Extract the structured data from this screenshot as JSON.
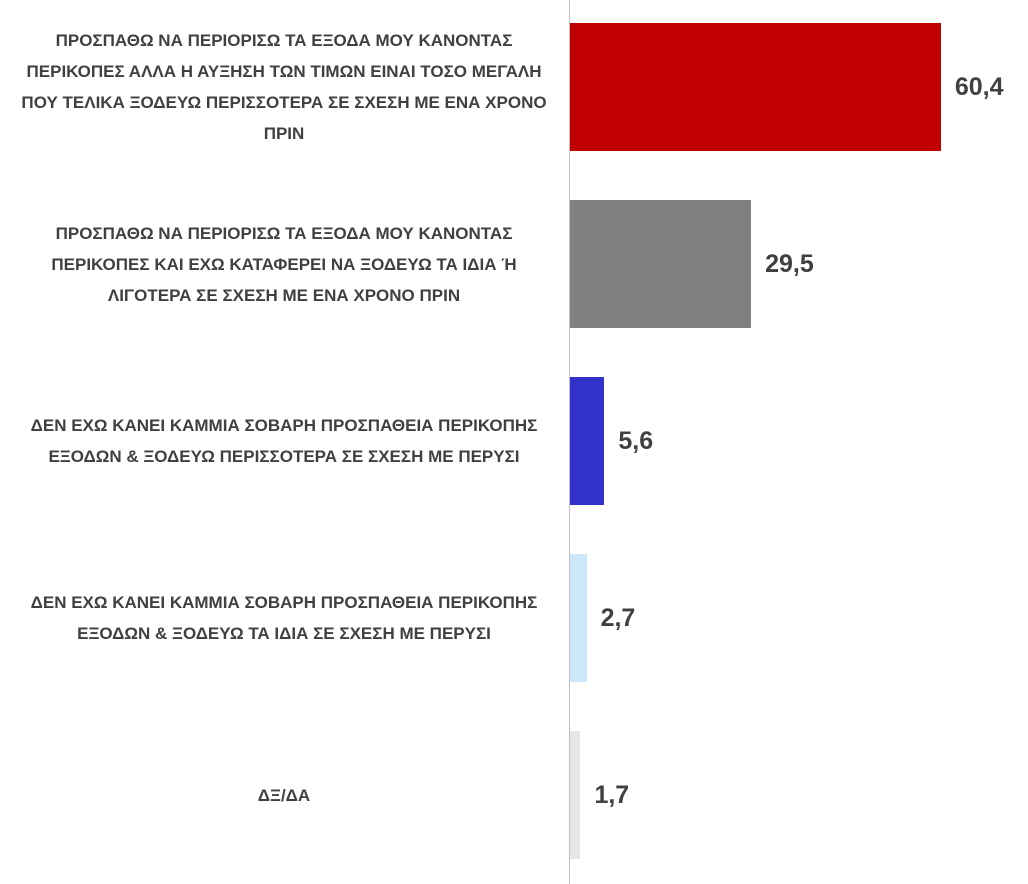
{
  "chart_data": {
    "type": "barh",
    "categories": [
      "ΠΡΟΣΠΑΘΩ ΝΑ ΠΕΡΙΟΡΙΣΩ ΤΑ ΕΞΟΔΑ ΜΟΥ ΚΑΝΟΝΤΑΣ ΠΕΡΙΚΟΠΕΣ ΑΛΛΑ Η ΑΥΞΗΣΗ ΤΩΝ ΤΙΜΩΝ ΕΙΝΑΙ ΤΟΣΟ ΜΕΓΑΛΗ ΠΟΥ ΤΕΛΙΚΑ ΞΟΔΕΥΩ ΠΕΡΙΣΣΟΤΕΡΑ ΣΕ ΣΧΕΣΗ ΜΕ ΕΝΑ ΧΡΟΝΟ ΠΡΙΝ",
      "ΠΡΟΣΠΑΘΩ ΝΑ ΠΕΡΙΟΡΙΣΩ ΤΑ ΕΞΟΔΑ ΜΟΥ ΚΑΝΟΝΤΑΣ ΠΕΡΙΚΟΠΕΣ ΚΑΙ ΕΧΩ ΚΑΤΑΦΕΡΕΙ ΝΑ ΞΟΔΕΥΩ ΤΑ ΙΔΙΑ Ή ΛΙΓΟΤΕΡΑ ΣΕ ΣΧΕΣΗ ΜΕ ΕΝΑ ΧΡΟΝΟ ΠΡΙΝ",
      "ΔΕΝ ΕΧΩ ΚΑΝΕΙ ΚΑΜΜΙΑ ΣΟΒΑΡΗ ΠΡΟΣΠΑΘΕΙΑ ΠΕΡΙΚΟΠΗΣ ΕΞΟΔΩΝ & ΞΟΔΕΥΩ ΠΕΡΙΣΣΟΤΕΡΑ ΣΕ ΣΧΕΣΗ ΜΕ ΠΕΡΥΣΙ",
      "ΔΕΝ ΕΧΩ ΚΑΝΕΙ ΚΑΜΜΙΑ ΣΟΒΑΡΗ ΠΡΟΣΠΑΘΕΙΑ ΠΕΡΙΚΟΠΗΣ ΕΞΟΔΩΝ & ΞΟΔΕΥΩ ΤΑ ΙΔΙΑ ΣΕ ΣΧΕΣΗ ΜΕ ΠΕΡΥΣΙ",
      "ΔΞ/ΔΑ"
    ],
    "values": [
      60.4,
      29.5,
      5.6,
      2.7,
      1.7
    ],
    "value_labels": [
      "60,4",
      "29,5",
      "5,6",
      "2,7",
      "1,7"
    ],
    "colors": [
      "#c00000",
      "#808080",
      "#3333cc",
      "#cce6fa",
      "#e6e6e6"
    ]
  }
}
